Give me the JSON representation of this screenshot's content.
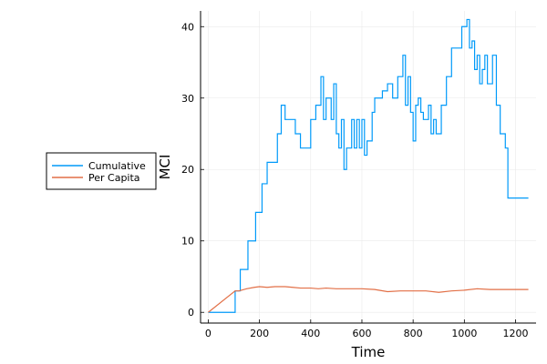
{
  "chart_data": {
    "type": "line",
    "xlabel": "Time",
    "ylabel": "MCI",
    "xlim": [
      -30,
      1280
    ],
    "ylim": [
      -1.5,
      42.2
    ],
    "xticks": [
      0,
      200,
      400,
      600,
      800,
      1000,
      1200
    ],
    "yticks": [
      0,
      10,
      20,
      30,
      40
    ],
    "grid": true,
    "legend_position": "left-outside",
    "series": [
      {
        "name": "Cumulative",
        "color": "#009af9",
        "step": true,
        "x": [
          0,
          105,
          125,
          155,
          185,
          210,
          230,
          270,
          285,
          300,
          340,
          360,
          400,
          420,
          440,
          450,
          460,
          480,
          490,
          500,
          510,
          520,
          530,
          540,
          560,
          570,
          580,
          590,
          600,
          610,
          620,
          630,
          640,
          650,
          660,
          680,
          700,
          720,
          740,
          760,
          770,
          780,
          790,
          800,
          810,
          820,
          830,
          840,
          860,
          870,
          880,
          890,
          900,
          910,
          930,
          950,
          970,
          990,
          1010,
          1020,
          1030,
          1040,
          1050,
          1060,
          1070,
          1080,
          1090,
          1100,
          1110,
          1125,
          1130,
          1140,
          1160,
          1170,
          1180,
          1250
        ],
        "y": [
          0,
          3,
          6,
          10,
          14,
          18,
          21,
          25,
          29,
          27,
          25,
          23,
          27,
          29,
          33,
          27,
          30,
          27,
          32,
          25,
          23,
          27,
          20,
          23,
          27,
          23,
          27,
          23,
          27,
          22,
          24,
          24,
          28,
          30,
          30,
          31,
          32,
          30,
          33,
          36,
          29,
          33,
          28,
          24,
          29,
          30,
          28,
          27,
          29,
          25,
          27,
          25,
          25,
          29,
          33,
          37,
          37,
          40,
          41,
          37,
          38,
          34,
          36,
          32,
          34,
          36,
          32,
          32,
          36,
          29,
          29,
          25,
          23,
          16,
          16,
          16
        ]
      },
      {
        "name": "Per Capita",
        "color": "#e26f46",
        "step": false,
        "x": [
          0,
          105,
          120,
          150,
          180,
          200,
          230,
          260,
          300,
          330,
          360,
          400,
          430,
          460,
          500,
          550,
          600,
          650,
          700,
          750,
          800,
          850,
          900,
          950,
          1000,
          1050,
          1100,
          1150,
          1200,
          1250
        ],
        "y": [
          0,
          3.0,
          3.0,
          3.3,
          3.5,
          3.6,
          3.5,
          3.6,
          3.6,
          3.5,
          3.4,
          3.4,
          3.3,
          3.4,
          3.3,
          3.3,
          3.3,
          3.2,
          2.9,
          3.0,
          3.0,
          3.0,
          2.8,
          3.0,
          3.1,
          3.3,
          3.2,
          3.2,
          3.2,
          3.2
        ]
      }
    ]
  }
}
